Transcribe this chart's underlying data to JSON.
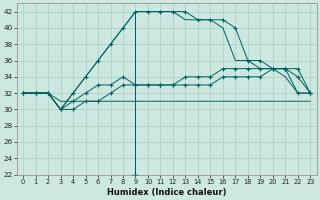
{
  "xlabel": "Humidex (Indice chaleur)",
  "xlim": [
    -0.5,
    23.5
  ],
  "ylim": [
    22,
    43
  ],
  "yticks": [
    22,
    24,
    26,
    28,
    30,
    32,
    34,
    36,
    38,
    40,
    42
  ],
  "xticks": [
    0,
    1,
    2,
    3,
    4,
    5,
    6,
    7,
    8,
    9,
    10,
    11,
    12,
    13,
    14,
    15,
    16,
    17,
    18,
    19,
    20,
    21,
    22,
    23
  ],
  "bg_color": "#cce8e0",
  "grid_color": "#a8cfc4",
  "line_color": "#006060",
  "s1_x": [
    0,
    1,
    2,
    3,
    4,
    5,
    6,
    7,
    8,
    9,
    10,
    11,
    12,
    13,
    14,
    15,
    16,
    17,
    18,
    19,
    20,
    21,
    22,
    23
  ],
  "s1_y": [
    32,
    32,
    32,
    31,
    31,
    31,
    31,
    31,
    31,
    31,
    31,
    31,
    31,
    31,
    31,
    31,
    31,
    31,
    31,
    31,
    31,
    31,
    31,
    31
  ],
  "s1_markers": false,
  "s2_x": [
    0,
    1,
    2,
    3,
    4,
    5,
    6,
    7,
    8,
    9,
    10,
    11,
    12,
    13,
    14,
    15,
    16,
    17,
    18,
    19,
    20,
    21,
    22,
    23
  ],
  "s2_y": [
    32,
    32,
    32,
    30,
    30,
    31,
    31,
    32,
    33,
    33,
    33,
    33,
    33,
    33,
    33,
    33,
    34,
    34,
    34,
    34,
    35,
    35,
    32,
    32
  ],
  "s2_markers": true,
  "s3_x": [
    0,
    1,
    2,
    3,
    4,
    5,
    6,
    7,
    8,
    9,
    10,
    11,
    12,
    13,
    14,
    15,
    16,
    17,
    18,
    19,
    20,
    21,
    22,
    23
  ],
  "s3_y": [
    32,
    32,
    32,
    30,
    31,
    32,
    33,
    33,
    34,
    33,
    33,
    33,
    33,
    34,
    34,
    34,
    35,
    35,
    35,
    35,
    35,
    35,
    35,
    32
  ],
  "s3_markers": true,
  "s4_x": [
    0,
    1,
    2,
    3,
    4,
    5,
    6,
    7,
    8,
    9,
    10,
    11,
    12,
    13,
    14,
    15,
    16,
    17,
    18,
    19,
    20,
    21,
    22,
    23
  ],
  "s4_y": [
    32,
    32,
    32,
    30,
    32,
    34,
    36,
    38,
    40,
    42,
    42,
    42,
    42,
    42,
    41,
    41,
    41,
    40,
    36,
    36,
    35,
    35,
    34,
    32
  ],
  "s4_markers": true,
  "s5_x": [
    0,
    1,
    2,
    3,
    4,
    5,
    6,
    7,
    8,
    9,
    9,
    9,
    10,
    11,
    12,
    13,
    14,
    15,
    16,
    17,
    18,
    19,
    20,
    21,
    22,
    23
  ],
  "s5_y": [
    32,
    32,
    32,
    30,
    32,
    34,
    36,
    38,
    40,
    42,
    22,
    42,
    42,
    42,
    42,
    41,
    41,
    41,
    40,
    36,
    36,
    35,
    35,
    34,
    32,
    32
  ],
  "s5_markers": false
}
